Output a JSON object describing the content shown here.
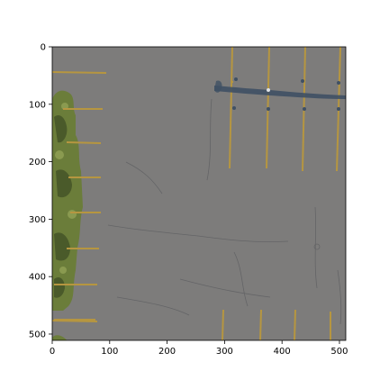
{
  "colors": {
    "asphalt": "#7d7c7b",
    "parking_line": "#b69640",
    "vegetation": "#6b7d3a",
    "vegetation_dark": "#4a5a2a",
    "water_streak": "#3f5064",
    "axis": "#000000"
  },
  "image": {
    "extent_x": [
      0,
      511
    ],
    "extent_y": [
      511,
      0
    ]
  },
  "axes": {
    "x_ticks": [
      {
        "value": 0,
        "label": "0"
      },
      {
        "value": 100,
        "label": "100"
      },
      {
        "value": 200,
        "label": "200"
      },
      {
        "value": 300,
        "label": "300"
      },
      {
        "value": 400,
        "label": "400"
      },
      {
        "value": 500,
        "label": "500"
      }
    ],
    "y_ticks": [
      {
        "value": 0,
        "label": "0"
      },
      {
        "value": 100,
        "label": "100"
      },
      {
        "value": 200,
        "label": "200"
      },
      {
        "value": 300,
        "label": "300"
      },
      {
        "value": 400,
        "label": "400"
      },
      {
        "value": 500,
        "label": "500"
      }
    ]
  }
}
